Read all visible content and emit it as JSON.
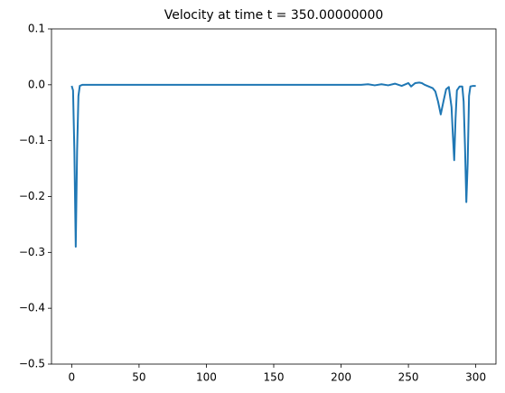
{
  "chart_data": {
    "type": "line",
    "title": "Velocity at time t =   350.00000000",
    "x": [
      0,
      1,
      2,
      3,
      4,
      5,
      6,
      8,
      10,
      50,
      100,
      150,
      200,
      215,
      220,
      225,
      230,
      235,
      240,
      245,
      250,
      252,
      255,
      258,
      260,
      262,
      265,
      268,
      270,
      272,
      274,
      276,
      278,
      280,
      282,
      283,
      284,
      285,
      286,
      288,
      290,
      291,
      292,
      293,
      294,
      295,
      296,
      298,
      300
    ],
    "series": [
      {
        "color": "#1f77b4",
        "values": [
          -0.002,
          -0.01,
          -0.12,
          -0.29,
          -0.12,
          -0.02,
          -0.002,
          0,
          0,
          0,
          0,
          0,
          0,
          0,
          0.001,
          -0.001,
          0.001,
          -0.001,
          0.002,
          -0.002,
          0.003,
          -0.003,
          0.003,
          0.004,
          0.003,
          0,
          -0.003,
          -0.006,
          -0.012,
          -0.03,
          -0.053,
          -0.03,
          -0.008,
          -0.004,
          -0.04,
          -0.09,
          -0.135,
          -0.06,
          -0.01,
          -0.003,
          -0.003,
          -0.03,
          -0.11,
          -0.21,
          -0.14,
          -0.02,
          -0.003,
          -0.002,
          -0.002
        ]
      }
    ],
    "xlim": [
      -15,
      315
    ],
    "xticks": [
      0,
      50,
      100,
      150,
      200,
      250,
      300
    ],
    "ylim": [
      -0.5,
      0.1
    ],
    "yticks": [
      {
        "value": 0.1,
        "label": "0.1"
      },
      {
        "value": 0.0,
        "label": "0.0"
      },
      {
        "value": -0.1,
        "label": "−0.1"
      },
      {
        "value": -0.2,
        "label": "−0.2"
      },
      {
        "value": -0.3,
        "label": "−0.3"
      },
      {
        "value": -0.4,
        "label": "−0.4"
      },
      {
        "value": -0.5,
        "label": "−0.5"
      }
    ],
    "grid": false
  }
}
